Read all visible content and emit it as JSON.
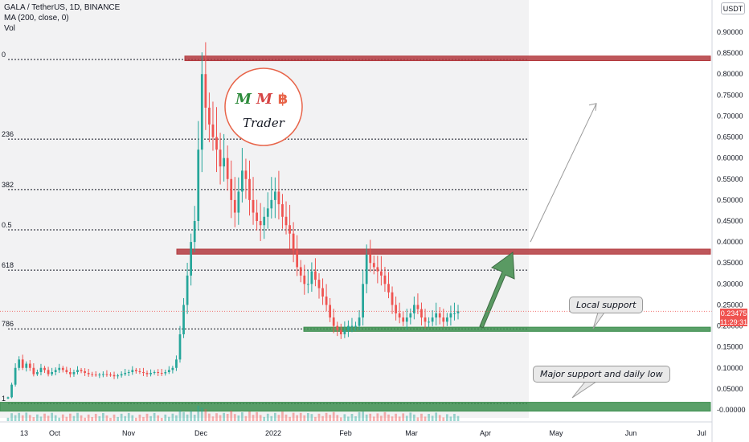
{
  "header": {
    "symbol_line": "GALA / TetherUS, 1D, BINANCE",
    "ma_line": "MA (200, close, 0)",
    "vol_line": "Vol"
  },
  "currency_button": "USDT",
  "current_price": "0.23475",
  "countdown": "11:29:31",
  "logo": {
    "letters": [
      "M",
      "M",
      "฿"
    ],
    "word": "Trader"
  },
  "annotations": [
    {
      "text": "Local support"
    },
    {
      "text": "Major support and daily low"
    }
  ],
  "colors": {
    "bull": "#26a69a",
    "bear": "#ef5350",
    "resistance": "#b33a3e",
    "support": "#3d8f4f",
    "arrow": "#5a9a63",
    "price_tag": "#ef5350"
  },
  "chart_data": {
    "type": "candlestick",
    "symbol": "GALA/USDT",
    "interval": "1D",
    "exchange": "BINANCE",
    "x_ticks": [
      "13",
      "Oct",
      "Nov",
      "Dec",
      "2022",
      "Feb",
      "Mar",
      "Apr",
      "May",
      "Jun",
      "Jul"
    ],
    "y_ticks": [
      "0.90000",
      "0.85000",
      "0.80000",
      "0.75000",
      "0.70000",
      "0.65000",
      "0.60000",
      "0.55000",
      "0.50000",
      "0.45000",
      "0.40000",
      "0.35000",
      "0.30000",
      "0.25000",
      "0.20000",
      "0.15000",
      "0.10000",
      "0.05000",
      "-0.00000"
    ],
    "ylim": [
      -0.03,
      0.91
    ],
    "fib_levels": [
      {
        "label": "0",
        "value": 0.835
      },
      {
        "label": "236",
        "value": 0.645
      },
      {
        "label": "382",
        "value": 0.525
      },
      {
        "label": "0.5",
        "value": 0.429
      },
      {
        "label": "618",
        "value": 0.333
      },
      {
        "label": "786",
        "value": 0.193
      },
      {
        "label": "1",
        "value": 0.015
      }
    ],
    "zones": [
      {
        "kind": "resistance",
        "low": 0.832,
        "high": 0.843
      },
      {
        "kind": "resistance",
        "low": 0.371,
        "high": 0.383
      },
      {
        "kind": "support",
        "low": 0.187,
        "high": 0.197
      },
      {
        "kind": "support",
        "low": -0.003,
        "high": 0.018
      }
    ],
    "price_series": [
      0.03,
      0.06,
      0.1,
      0.12,
      0.1,
      0.11,
      0.1,
      0.085,
      0.09,
      0.1,
      0.095,
      0.085,
      0.09,
      0.095,
      0.1,
      0.095,
      0.09,
      0.085,
      0.09,
      0.095,
      0.092,
      0.088,
      0.085,
      0.084,
      0.083,
      0.084,
      0.085,
      0.084,
      0.083,
      0.08,
      0.082,
      0.085,
      0.088,
      0.09,
      0.095,
      0.092,
      0.09,
      0.088,
      0.085,
      0.088,
      0.09,
      0.088,
      0.087,
      0.09,
      0.095,
      0.1,
      0.12,
      0.18,
      0.25,
      0.32,
      0.4,
      0.45,
      0.62,
      0.8,
      0.72,
      0.68,
      0.65,
      0.62,
      0.58,
      0.6,
      0.55,
      0.5,
      0.47,
      0.52,
      0.57,
      0.55,
      0.5,
      0.47,
      0.45,
      0.44,
      0.46,
      0.48,
      0.5,
      0.52,
      0.49,
      0.46,
      0.44,
      0.42,
      0.38,
      0.34,
      0.32,
      0.3,
      0.3,
      0.33,
      0.31,
      0.29,
      0.27,
      0.25,
      0.22,
      0.2,
      0.19,
      0.18,
      0.19,
      0.2,
      0.2,
      0.2,
      0.22,
      0.3,
      0.37,
      0.35,
      0.34,
      0.33,
      0.32,
      0.3,
      0.28,
      0.25,
      0.23,
      0.22,
      0.21,
      0.22,
      0.23,
      0.25,
      0.24,
      0.22,
      0.21,
      0.21,
      0.22,
      0.23,
      0.22,
      0.21,
      0.22,
      0.23,
      0.23,
      0.235
    ],
    "projection": {
      "from": 0.4,
      "to": 0.73
    }
  }
}
